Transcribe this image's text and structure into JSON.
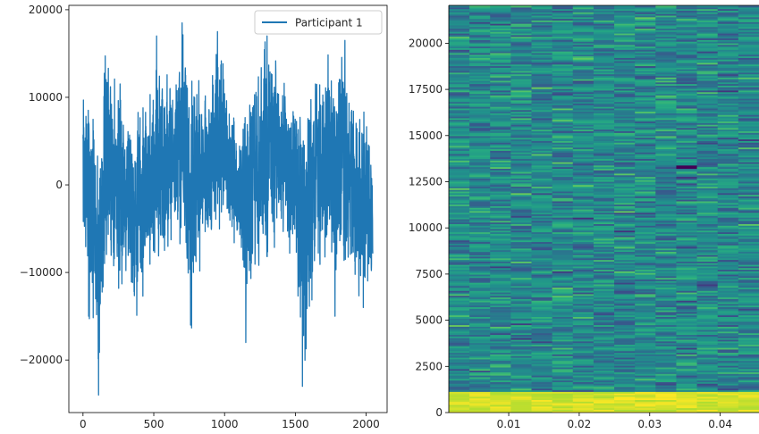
{
  "chart_data": [
    {
      "type": "line",
      "title": "",
      "xlabel": "",
      "ylabel": "",
      "xlim": [
        -100,
        2148
      ],
      "ylim": [
        -26000,
        20500
      ],
      "xticks": [
        0,
        500,
        1000,
        1500,
        2000
      ],
      "xtick_labels": [
        "0",
        "500",
        "1000",
        "1500",
        "2000"
      ],
      "yticks": [
        -20000,
        -10000,
        0,
        10000,
        20000
      ],
      "ytick_labels": [
        "−20000",
        "−10000",
        "0",
        "10000",
        "20000"
      ],
      "grid": false,
      "legend_position": "upper-right",
      "series": [
        {
          "name": "Participant 1",
          "color": "#1f77b4",
          "n_points": 2048,
          "x_start": 0,
          "x_step": 1,
          "seed": 7,
          "envelope_knots": [
            [
              0,
              -5000,
              11000
            ],
            [
              40,
              -15000,
              13500
            ],
            [
              80,
              -16000,
              9000
            ],
            [
              110,
              -24000,
              5000
            ],
            [
              150,
              -12000,
              15500
            ],
            [
              200,
              -10000,
              15000
            ],
            [
              260,
              -14000,
              12000
            ],
            [
              320,
              -9000,
              10500
            ],
            [
              350,
              -14000,
              9000
            ],
            [
              400,
              -16000,
              12000
            ],
            [
              450,
              -9000,
              8000
            ],
            [
              520,
              -12000,
              17000
            ],
            [
              560,
              -11000,
              16500
            ],
            [
              600,
              -9000,
              14000
            ],
            [
              650,
              -6000,
              12500
            ],
            [
              700,
              -8000,
              18500
            ],
            [
              760,
              -16000,
              15000
            ],
            [
              820,
              -10000,
              12000
            ],
            [
              850,
              -6000,
              11500
            ],
            [
              900,
              -9000,
              13000
            ],
            [
              950,
              -6000,
              17500
            ],
            [
              1000,
              -6000,
              13000
            ],
            [
              1050,
              -7000,
              9000
            ],
            [
              1100,
              -8000,
              6000
            ],
            [
              1150,
              -18000,
              14000
            ],
            [
              1200,
              -13000,
              12000
            ],
            [
              1250,
              -12000,
              14500
            ],
            [
              1300,
              -9000,
              17000
            ],
            [
              1350,
              -9000,
              16500
            ],
            [
              1400,
              -7000,
              11000
            ],
            [
              1450,
              -8000,
              13000
            ],
            [
              1500,
              -9000,
              9000
            ],
            [
              1550,
              -23000,
              9000
            ],
            [
              1600,
              -16000,
              10000
            ],
            [
              1650,
              -12000,
              14000
            ],
            [
              1700,
              -9000,
              13500
            ],
            [
              1750,
              -8000,
              15500
            ],
            [
              1800,
              -10000,
              13500
            ],
            [
              1850,
              -11000,
              16500
            ],
            [
              1900,
              -10000,
              11000
            ],
            [
              1950,
              -14000,
              7000
            ],
            [
              2000,
              -13000,
              10000
            ],
            [
              2047,
              -12000,
              4000
            ]
          ],
          "spikes": [
            [
              110,
              -24000
            ],
            [
              700,
              18500
            ],
            [
              950,
              17500
            ],
            [
              1150,
              -18000
            ],
            [
              1550,
              -23000
            ],
            [
              1850,
              16500
            ],
            [
              1780,
              -15000
            ],
            [
              760,
              -16000
            ],
            [
              520,
              17000
            ],
            [
              1300,
              17000
            ],
            [
              40,
              -15000
            ],
            [
              1980,
              -14000
            ]
          ]
        }
      ]
    },
    {
      "type": "heatmap",
      "title": "",
      "xlabel": "",
      "ylabel": "",
      "xlim": [
        0.0015,
        0.0455
      ],
      "ylim": [
        0,
        22050
      ],
      "xticks": [
        0.01,
        0.02,
        0.03,
        0.04
      ],
      "xtick_labels": [
        "0.01",
        "0.02",
        "0.03",
        "0.04"
      ],
      "yticks": [
        0,
        2500,
        5000,
        7500,
        10000,
        12500,
        15000,
        17500,
        20000
      ],
      "ytick_labels": [
        "0",
        "2500",
        "5000",
        "7500",
        "10000",
        "12500",
        "15000",
        "17500",
        "20000"
      ],
      "colormap": "viridis",
      "n_cols": 15,
      "n_rows": 250,
      "seed": 11,
      "value_range": [
        0.15,
        0.8
      ],
      "low_freq_bright_band": [
        0,
        1100
      ],
      "hot_cells": [
        {
          "x": 0.035,
          "y": 13300,
          "value": 0.0
        }
      ]
    }
  ]
}
